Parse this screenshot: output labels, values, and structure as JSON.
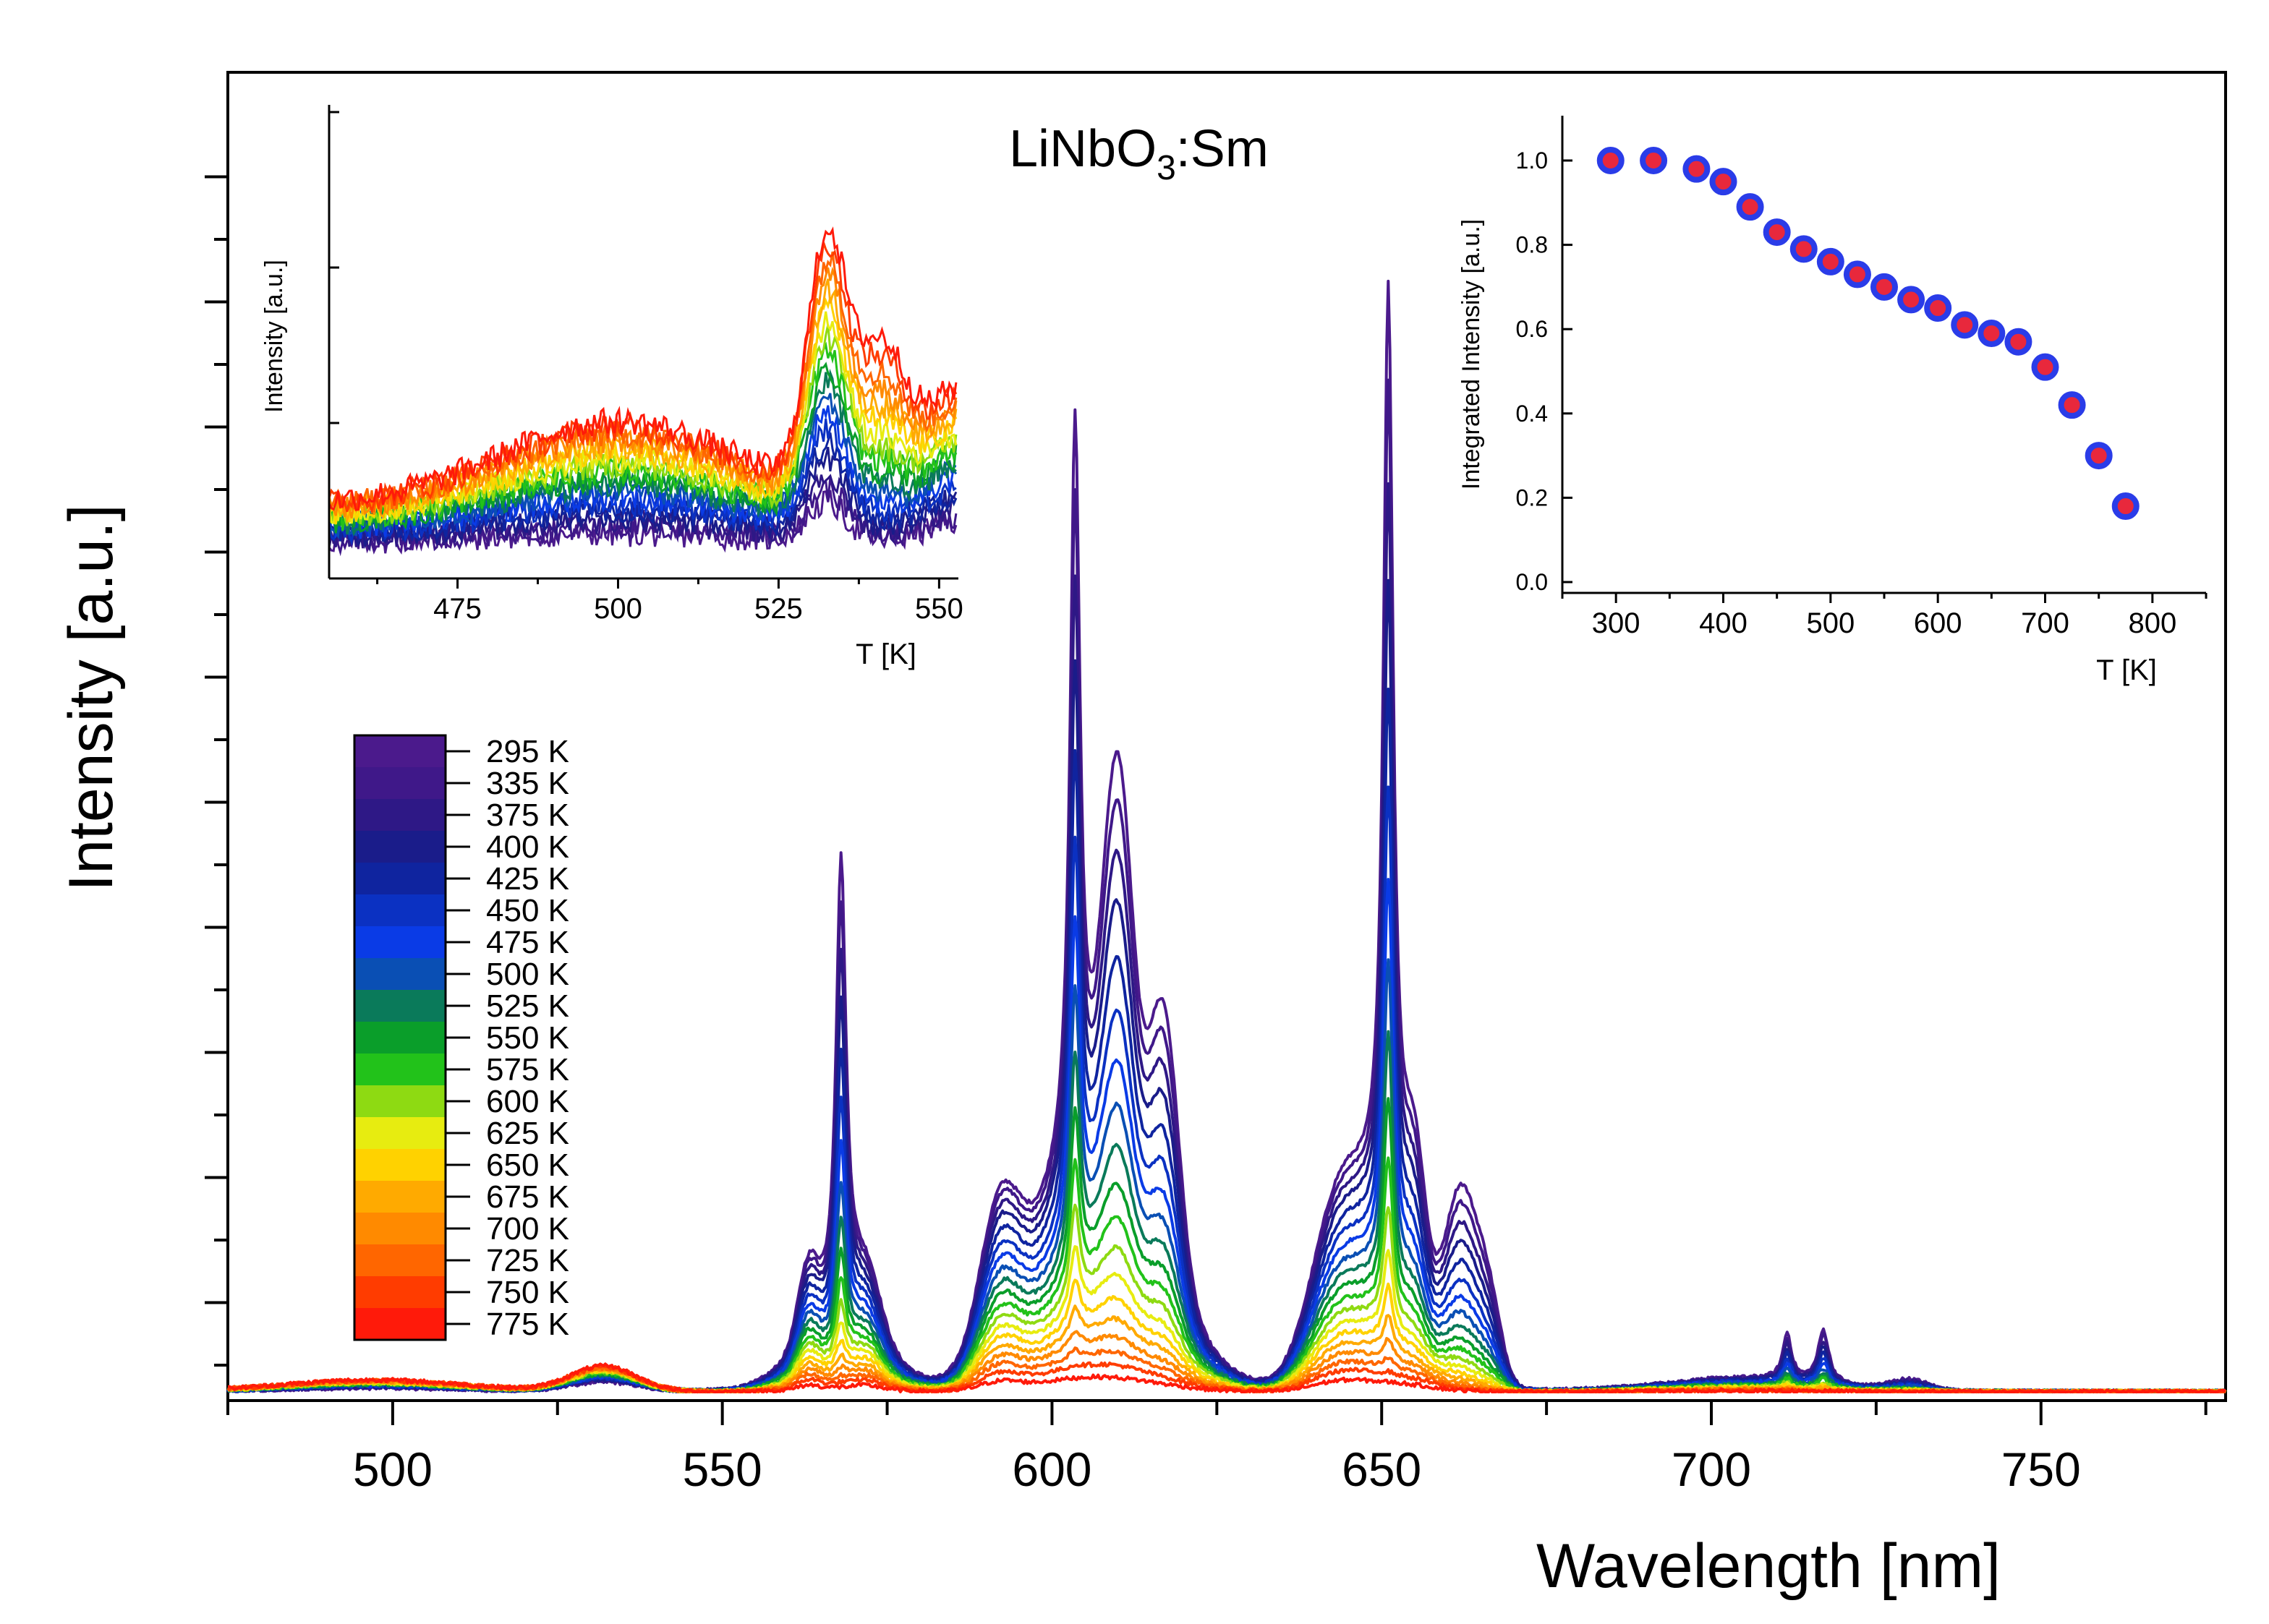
{
  "chart_data": [
    {
      "id": "main",
      "type": "line",
      "title": "LiNbO3:Sm",
      "title_parts": {
        "base": "LiNbO",
        "sub": "3",
        "suffix": ":Sm"
      },
      "xlabel": "Wavelength [nm]",
      "ylabel": "Intensity [a.u.]",
      "xlim": [
        475,
        778
      ],
      "ylim": [
        0,
        1.0
      ],
      "x_ticks": [
        500,
        550,
        600,
        650,
        700,
        750
      ],
      "x_tick_labels": [
        "500",
        "550",
        "600",
        "650",
        "700",
        "750"
      ],
      "grid": false,
      "peaks_nm": [
        532,
        563,
        568,
        572,
        591,
        603.5,
        610,
        617,
        643,
        651,
        655,
        662,
        666,
        700,
        711.5,
        717,
        730
      ],
      "series": [
        {
          "name": "295 K",
          "color": "#4B1A8C",
          "peak_651": 0.92
        },
        {
          "name": "335 K",
          "color": "#3F1889",
          "peak_651": 0.9
        },
        {
          "name": "375 K",
          "color": "#2E1886",
          "peak_651": 0.87
        },
        {
          "name": "400 K",
          "color": "#1A1C8A",
          "peak_651": 0.84
        },
        {
          "name": "425 K",
          "color": "#0F249F",
          "peak_651": 0.79
        },
        {
          "name": "450 K",
          "color": "#0B31C2",
          "peak_651": 0.74
        },
        {
          "name": "475 K",
          "color": "#0A3BE6",
          "peak_651": 0.69
        },
        {
          "name": "500 K",
          "color": "#0A4FB4",
          "peak_651": 0.64
        },
        {
          "name": "525 K",
          "color": "#0A7A5A",
          "peak_651": 0.59
        },
        {
          "name": "550 K",
          "color": "#0A9E2A",
          "peak_651": 0.54
        },
        {
          "name": "575 K",
          "color": "#22C21A",
          "peak_651": 0.49
        },
        {
          "name": "600 K",
          "color": "#8EDA12",
          "peak_651": 0.44
        },
        {
          "name": "625 K",
          "color": "#E7EC10",
          "peak_651": 0.39
        },
        {
          "name": "650 K",
          "color": "#FFD200",
          "peak_651": 0.34
        },
        {
          "name": "675 K",
          "color": "#FFAA00",
          "peak_651": 0.29
        },
        {
          "name": "700 K",
          "color": "#FF8A00",
          "peak_651": 0.24
        },
        {
          "name": "725 K",
          "color": "#FF6600",
          "peak_651": 0.19
        },
        {
          "name": "750 K",
          "color": "#FF3C00",
          "peak_651": 0.14
        },
        {
          "name": "775 K",
          "color": "#FF1A0A",
          "peak_651": 0.08
        }
      ],
      "legend_position": "left-center"
    },
    {
      "id": "inset_spectra",
      "type": "line",
      "xlabel": "T [K]",
      "ylabel": "Intensity [a.u.]",
      "xlim": [
        455,
        553
      ],
      "x_ticks": [
        475,
        500,
        525,
        550
      ],
      "x_tick_labels": [
        "475",
        "500",
        "525",
        "550"
      ],
      "grid": false,
      "position": "top-left"
    },
    {
      "id": "inset_integrated",
      "type": "scatter",
      "xlabel": "T [K]",
      "ylabel": "Integrated Intensity [a.u.]",
      "xlim": [
        250,
        850
      ],
      "ylim": [
        0,
        1.1
      ],
      "x_ticks": [
        300,
        400,
        500,
        600,
        700,
        800
      ],
      "x_tick_labels": [
        "300",
        "400",
        "500",
        "600",
        "700",
        "800"
      ],
      "y_ticks": [
        0.0,
        0.2,
        0.4,
        0.6,
        0.8,
        1.0
      ],
      "y_tick_labels": [
        "0.0",
        "0.2",
        "0.4",
        "0.6",
        "0.8",
        "1.0"
      ],
      "grid": false,
      "position": "top-right",
      "marker_fill": "#E8283C",
      "marker_edge": "#2A3CE8",
      "x": [
        295,
        335,
        375,
        400,
        425,
        450,
        475,
        500,
        525,
        550,
        575,
        600,
        625,
        650,
        675,
        700,
        725,
        750,
        775
      ],
      "y": [
        1.0,
        1.0,
        0.98,
        0.95,
        0.89,
        0.83,
        0.79,
        0.76,
        0.73,
        0.7,
        0.67,
        0.65,
        0.61,
        0.59,
        0.57,
        0.51,
        0.42,
        0.3,
        0.18
      ]
    }
  ]
}
